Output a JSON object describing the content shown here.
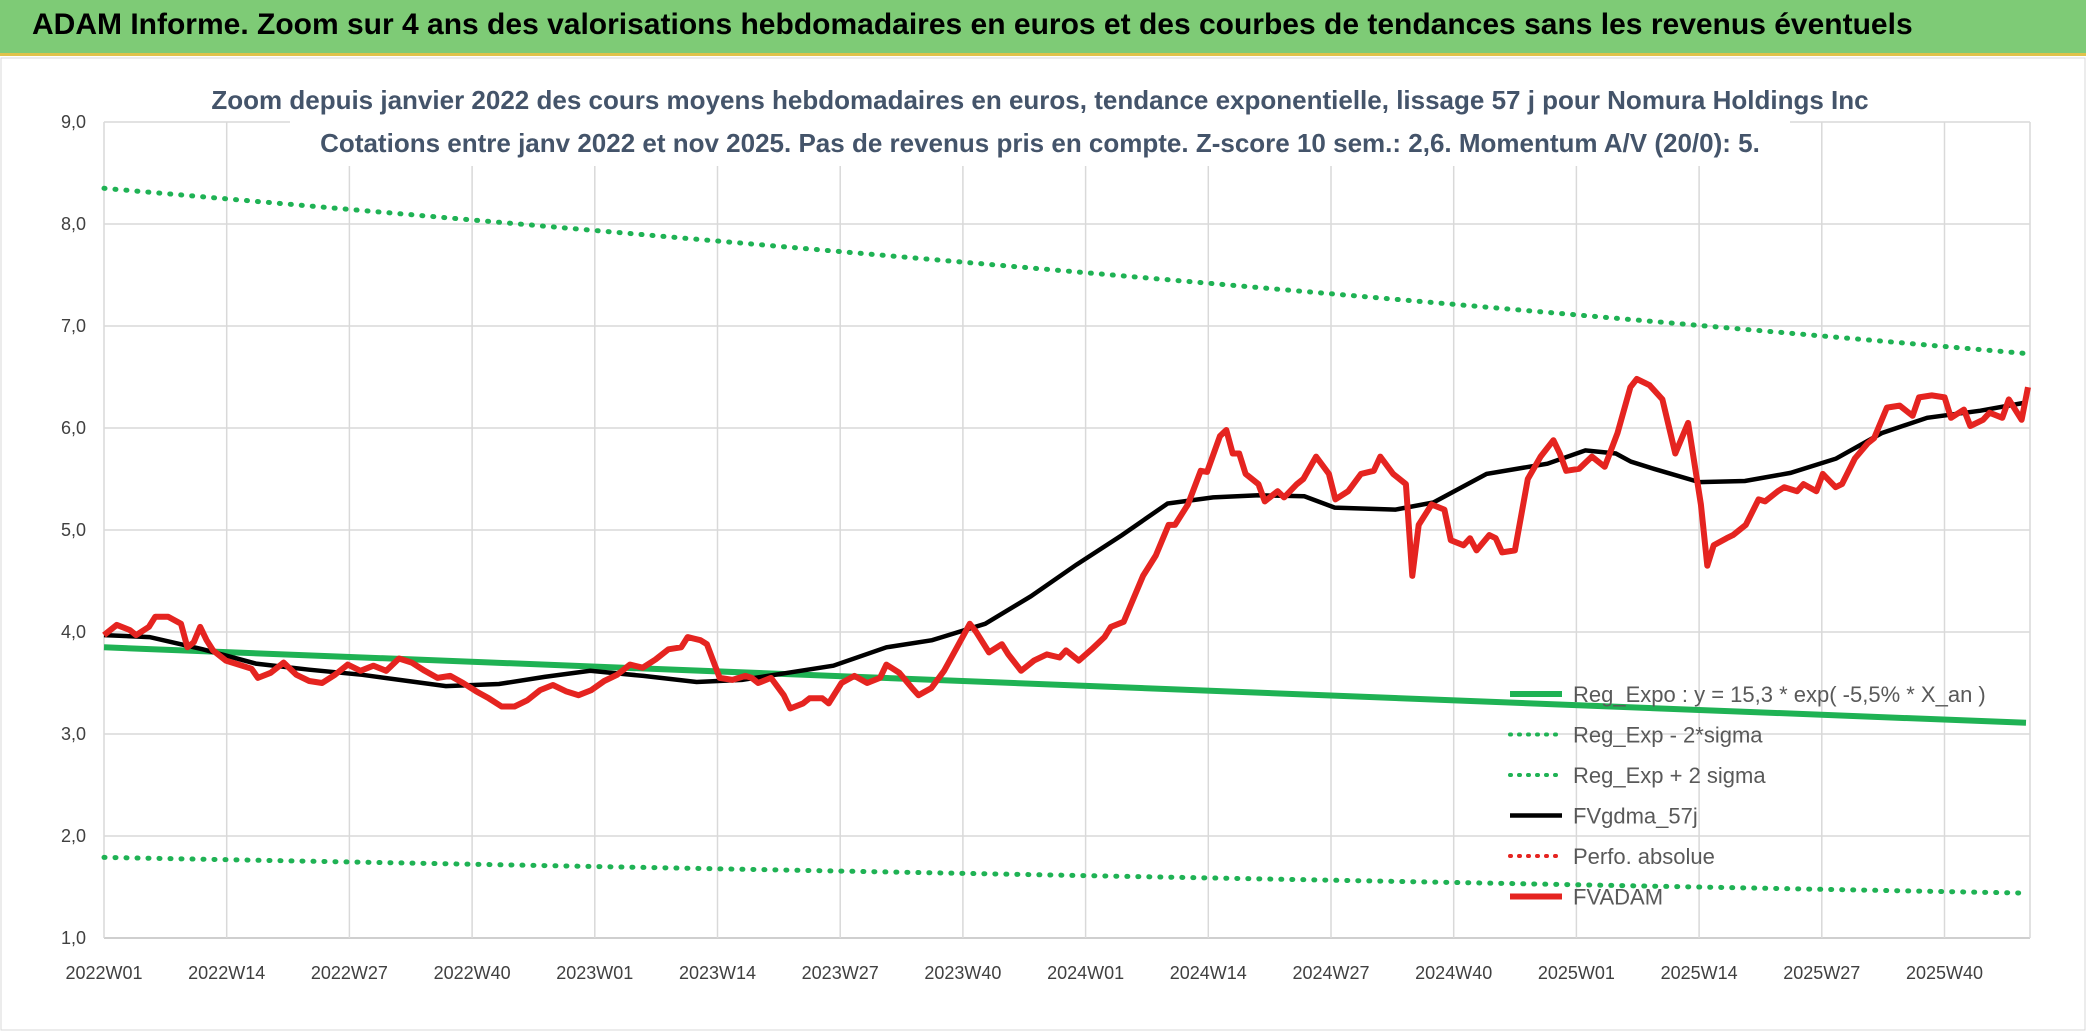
{
  "banner": {
    "title": "ADAM Informe. Zoom sur 4 ans des valorisations hebdomadaires en euros et des courbes de tendances sans les revenus éventuels"
  },
  "chart_data": {
    "type": "line",
    "title": "Zoom depuis janvier 2022 des cours moyens hebdomadaires en euros, tendance exponentielle, lissage 57 j pour Nomura Holdings Inc",
    "subtitle": "Cotations entre janv 2022 et nov 2025. Pas de revenus pris en compte. Z-score 10 sem.: 2,6. Momentum A/V (20/0): 5.",
    "ylim": [
      1.0,
      9.0
    ],
    "y_ticks": [
      "1,0",
      "2,0",
      "3,0",
      "4,0",
      "5,0",
      "6,0",
      "7,0",
      "8,0",
      "9,0"
    ],
    "x_ticks": [
      "2022W01",
      "2022W14",
      "2022W27",
      "2022W40",
      "2023W01",
      "2023W14",
      "2023W27",
      "2023W40",
      "2024W01",
      "2024W14",
      "2024W27",
      "2024W40",
      "2025W01",
      "2025W14",
      "2025W27",
      "2025W40"
    ],
    "grid": true,
    "legend_position": "bottom-right",
    "series": [
      {
        "name": "Reg_Expo : y = 15,3 * exp( -5,5% *  X_an )",
        "color": "#1fb254",
        "style": "solid",
        "points": [
          [
            0,
            3.85
          ],
          [
            204,
            3.11
          ]
        ]
      },
      {
        "name": "Reg_Exp - 2*sigma",
        "color": "#1fb254",
        "style": "dotted",
        "points": [
          [
            0,
            1.79
          ],
          [
            204,
            1.44
          ]
        ]
      },
      {
        "name": "Reg_Exp + 2 sigma",
        "color": "#1fb254",
        "style": "dotted",
        "points": [
          [
            0,
            8.35
          ],
          [
            204,
            6.73
          ]
        ]
      },
      {
        "name": "FVgdma_57j",
        "color": "#000000",
        "style": "solid",
        "points": [
          [
            0,
            3.97
          ],
          [
            6,
            3.95
          ],
          [
            13,
            3.83
          ],
          [
            20,
            3.69
          ],
          [
            27,
            3.63
          ],
          [
            34,
            3.58
          ],
          [
            40,
            3.52
          ],
          [
            45,
            3.47
          ],
          [
            52,
            3.49
          ],
          [
            58,
            3.56
          ],
          [
            64,
            3.62
          ],
          [
            71,
            3.57
          ],
          [
            78,
            3.51
          ],
          [
            84,
            3.53
          ],
          [
            90,
            3.6
          ],
          [
            96,
            3.67
          ],
          [
            103,
            3.85
          ],
          [
            109,
            3.92
          ],
          [
            116,
            4.08
          ],
          [
            122,
            4.35
          ],
          [
            128,
            4.66
          ],
          [
            134,
            4.95
          ],
          [
            140,
            5.26
          ],
          [
            146,
            5.32
          ],
          [
            152,
            5.34
          ],
          [
            158,
            5.33
          ],
          [
            162,
            5.22
          ],
          [
            170,
            5.2
          ],
          [
            175,
            5.27
          ],
          [
            182,
            5.55
          ],
          [
            190,
            5.65
          ],
          [
            195,
            5.78
          ],
          [
            199,
            5.75
          ],
          [
            201,
            5.67
          ],
          [
            204,
            5.6
          ],
          [
            210,
            5.47
          ],
          [
            216,
            5.48
          ],
          [
            222,
            5.56
          ],
          [
            228,
            5.7
          ],
          [
            234,
            5.95
          ],
          [
            240,
            6.1
          ],
          [
            247,
            6.17
          ],
          [
            253,
            6.25
          ]
        ]
      },
      {
        "name": "Perfo. absolue",
        "color": "#e52420",
        "style": "dotted",
        "points": []
      },
      {
        "name": "FVADAM",
        "color": "#e52420",
        "style": "solid",
        "points": [
          [
            0,
            3.97
          ],
          [
            2,
            4.07
          ],
          [
            4,
            4.02
          ],
          [
            5,
            3.97
          ],
          [
            7,
            4.05
          ],
          [
            8,
            4.15
          ],
          [
            10,
            4.15
          ],
          [
            12,
            4.08
          ],
          [
            13,
            3.85
          ],
          [
            14,
            3.9
          ],
          [
            15,
            4.05
          ],
          [
            16,
            3.92
          ],
          [
            17,
            3.82
          ],
          [
            19,
            3.72
          ],
          [
            21,
            3.68
          ],
          [
            23,
            3.64
          ],
          [
            24,
            3.55
          ],
          [
            26,
            3.6
          ],
          [
            28,
            3.7
          ],
          [
            30,
            3.58
          ],
          [
            32,
            3.52
          ],
          [
            34,
            3.5
          ],
          [
            36,
            3.58
          ],
          [
            38,
            3.68
          ],
          [
            40,
            3.62
          ],
          [
            42,
            3.67
          ],
          [
            44,
            3.62
          ],
          [
            46,
            3.74
          ],
          [
            48,
            3.7
          ],
          [
            50,
            3.62
          ],
          [
            52,
            3.55
          ],
          [
            54,
            3.57
          ],
          [
            56,
            3.5
          ],
          [
            58,
            3.42
          ],
          [
            60,
            3.35
          ],
          [
            62,
            3.27
          ],
          [
            64,
            3.27
          ],
          [
            66,
            3.33
          ],
          [
            68,
            3.43
          ],
          [
            70,
            3.48
          ],
          [
            72,
            3.42
          ],
          [
            74,
            3.38
          ],
          [
            76,
            3.43
          ],
          [
            78,
            3.52
          ],
          [
            80,
            3.58
          ],
          [
            82,
            3.68
          ],
          [
            84,
            3.65
          ],
          [
            86,
            3.73
          ],
          [
            88,
            3.83
          ],
          [
            90,
            3.85
          ],
          [
            91,
            3.95
          ],
          [
            93,
            3.92
          ],
          [
            94,
            3.88
          ],
          [
            96,
            3.55
          ],
          [
            98,
            3.53
          ],
          [
            100,
            3.57
          ],
          [
            101,
            3.55
          ],
          [
            102,
            3.5
          ],
          [
            104,
            3.55
          ],
          [
            106,
            3.38
          ],
          [
            107,
            3.25
          ],
          [
            109,
            3.3
          ],
          [
            110,
            3.35
          ],
          [
            112,
            3.35
          ],
          [
            113,
            3.3
          ],
          [
            115,
            3.5
          ],
          [
            117,
            3.57
          ],
          [
            119,
            3.5
          ],
          [
            121,
            3.55
          ],
          [
            122,
            3.68
          ],
          [
            124,
            3.6
          ],
          [
            126,
            3.45
          ],
          [
            127,
            3.38
          ],
          [
            129,
            3.45
          ],
          [
            131,
            3.62
          ],
          [
            133,
            3.85
          ],
          [
            135,
            4.08
          ],
          [
            136,
            4.0
          ],
          [
            138,
            3.8
          ],
          [
            140,
            3.88
          ],
          [
            141,
            3.78
          ],
          [
            143,
            3.62
          ],
          [
            145,
            3.72
          ],
          [
            147,
            3.78
          ],
          [
            149,
            3.75
          ],
          [
            150,
            3.82
          ],
          [
            152,
            3.72
          ],
          [
            154,
            3.83
          ],
          [
            156,
            3.95
          ],
          [
            157,
            4.05
          ],
          [
            159,
            4.1
          ],
          [
            160,
            4.25
          ],
          [
            162,
            4.55
          ],
          [
            164,
            4.75
          ],
          [
            166,
            5.05
          ],
          [
            167,
            5.05
          ],
          [
            169,
            5.25
          ],
          [
            171,
            5.58
          ],
          [
            172,
            5.57
          ],
          [
            174,
            5.92
          ],
          [
            175,
            5.98
          ],
          [
            176,
            5.75
          ],
          [
            177,
            5.75
          ],
          [
            178,
            5.55
          ],
          [
            180,
            5.45
          ],
          [
            181,
            5.28
          ],
          [
            183,
            5.38
          ],
          [
            184,
            5.32
          ],
          [
            186,
            5.45
          ],
          [
            187,
            5.5
          ],
          [
            189,
            5.72
          ],
          [
            191,
            5.55
          ],
          [
            192,
            5.3
          ],
          [
            194,
            5.38
          ],
          [
            196,
            5.55
          ],
          [
            198,
            5.58
          ],
          [
            199,
            5.72
          ],
          [
            201,
            5.55
          ],
          [
            203,
            5.45
          ],
          [
            204,
            4.55
          ],
          [
            205,
            5.05
          ],
          [
            207,
            5.25
          ],
          [
            209,
            5.2
          ],
          [
            210,
            4.9
          ],
          [
            212,
            4.85
          ],
          [
            213,
            4.92
          ],
          [
            214,
            4.8
          ],
          [
            216,
            4.95
          ],
          [
            217,
            4.92
          ],
          [
            218,
            4.78
          ],
          [
            220,
            4.8
          ],
          [
            222,
            5.5
          ],
          [
            224,
            5.72
          ],
          [
            226,
            5.88
          ],
          [
            227,
            5.75
          ],
          [
            228,
            5.58
          ],
          [
            230,
            5.6
          ],
          [
            232,
            5.72
          ],
          [
            234,
            5.62
          ],
          [
            236,
            5.95
          ],
          [
            238,
            6.4
          ],
          [
            239,
            6.48
          ],
          [
            241,
            6.42
          ],
          [
            243,
            6.28
          ],
          [
            245,
            5.75
          ],
          [
            246,
            5.9
          ],
          [
            247,
            6.05
          ],
          [
            249,
            5.25
          ],
          [
            250,
            4.65
          ],
          [
            251,
            4.85
          ],
          [
            253,
            4.92
          ],
          [
            254,
            4.95
          ],
          [
            256,
            5.05
          ],
          [
            258,
            5.3
          ],
          [
            259,
            5.28
          ],
          [
            261,
            5.38
          ],
          [
            262,
            5.42
          ],
          [
            264,
            5.38
          ],
          [
            265,
            5.45
          ],
          [
            267,
            5.38
          ],
          [
            268,
            5.55
          ],
          [
            270,
            5.42
          ],
          [
            271,
            5.45
          ],
          [
            273,
            5.7
          ],
          [
            275,
            5.85
          ],
          [
            276,
            5.9
          ],
          [
            278,
            6.2
          ],
          [
            280,
            6.22
          ],
          [
            282,
            6.12
          ],
          [
            283,
            6.3
          ],
          [
            285,
            6.32
          ],
          [
            287,
            6.3
          ],
          [
            288,
            6.1
          ],
          [
            290,
            6.18
          ],
          [
            291,
            6.02
          ],
          [
            293,
            6.08
          ],
          [
            294,
            6.15
          ],
          [
            296,
            6.1
          ],
          [
            297,
            6.28
          ],
          [
            299,
            6.08
          ],
          [
            300,
            6.4
          ]
        ]
      }
    ]
  }
}
